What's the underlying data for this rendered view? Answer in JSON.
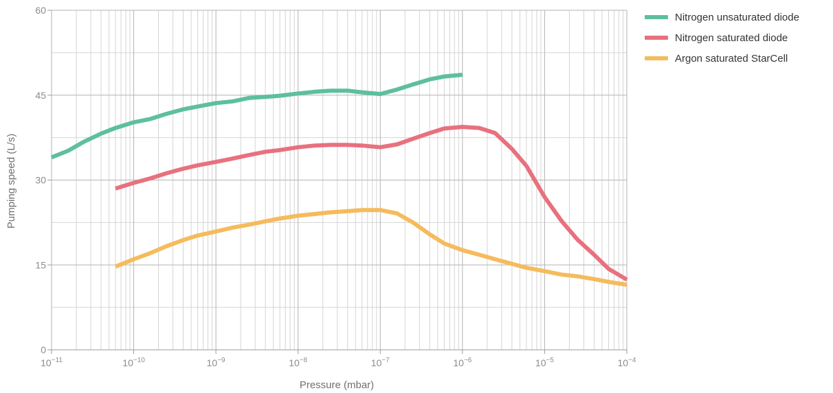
{
  "chart_data": {
    "type": "line",
    "xscale": "log",
    "xlim": [
      1e-11,
      0.0001
    ],
    "ylim": [
      0,
      60
    ],
    "xlabel": "Pressure (mbar)",
    "ylabel": "Pumping speed (L/s)",
    "grid": true,
    "legend_position": "top-right, outside plot",
    "yticks": [
      {
        "value": 0,
        "label": "0"
      },
      {
        "value": 15,
        "label": "15"
      },
      {
        "value": 30,
        "label": "30"
      },
      {
        "value": 45,
        "label": "45"
      },
      {
        "value": 60,
        "label": "60"
      }
    ],
    "xticks": [
      {
        "value": 1e-11,
        "base": "10",
        "exp": "−11"
      },
      {
        "value": 1e-10,
        "base": "10",
        "exp": "−10"
      },
      {
        "value": 1e-09,
        "base": "10",
        "exp": "−9"
      },
      {
        "value": 1e-08,
        "base": "10",
        "exp": "−8"
      },
      {
        "value": 1e-07,
        "base": "10",
        "exp": "−7"
      },
      {
        "value": 1e-06,
        "base": "10",
        "exp": "−6"
      },
      {
        "value": 1e-05,
        "base": "10",
        "exp": "−5"
      },
      {
        "value": 0.0001,
        "base": "10",
        "exp": "−4"
      }
    ],
    "series": [
      {
        "name": "Nitrogen unsaturated diode",
        "color": "#5dbf9f",
        "x": [
          1e-11,
          1.6e-11,
          2.5e-11,
          4e-11,
          6e-11,
          1e-10,
          1.6e-10,
          2.5e-10,
          4e-10,
          6e-10,
          1e-09,
          1.6e-09,
          2.5e-09,
          4e-09,
          6e-09,
          1e-08,
          1.6e-08,
          2.5e-08,
          4e-08,
          6e-08,
          1e-07,
          1.6e-07,
          2.5e-07,
          4e-07,
          6e-07,
          1e-06
        ],
        "y": [
          34,
          35.2,
          36.8,
          38.2,
          39.2,
          40.2,
          40.8,
          41.7,
          42.5,
          43.0,
          43.6,
          43.9,
          44.5,
          44.7,
          44.9,
          45.3,
          45.6,
          45.8,
          45.8,
          45.5,
          45.2,
          46.0,
          46.9,
          47.8,
          48.3,
          48.6
        ]
      },
      {
        "name": "Nitrogen saturated diode",
        "color": "#e8717f",
        "x": [
          6e-11,
          1e-10,
          1.6e-10,
          2.5e-10,
          4e-10,
          6e-10,
          1e-09,
          1.6e-09,
          2.5e-09,
          4e-09,
          6e-09,
          1e-08,
          1.6e-08,
          2.5e-08,
          4e-08,
          6e-08,
          1e-07,
          1.6e-07,
          2.5e-07,
          4e-07,
          6e-07,
          1e-06,
          1.6e-06,
          2.5e-06,
          4e-06,
          6e-06,
          1e-05,
          1.6e-05,
          2.5e-05,
          4e-05,
          6e-05,
          0.0001
        ],
        "y": [
          28.5,
          29.5,
          30.3,
          31.2,
          32.0,
          32.6,
          33.2,
          33.8,
          34.4,
          35.0,
          35.3,
          35.8,
          36.1,
          36.2,
          36.2,
          36.1,
          35.8,
          36.3,
          37.3,
          38.3,
          39.1,
          39.4,
          39.2,
          38.3,
          35.5,
          32.5,
          27.0,
          22.8,
          19.5,
          16.8,
          14.3,
          12.4
        ]
      },
      {
        "name": "Argon saturated StarCell",
        "color": "#f5bb5c",
        "x": [
          6e-11,
          1e-10,
          1.6e-10,
          2.5e-10,
          4e-10,
          6e-10,
          1e-09,
          1.6e-09,
          2.5e-09,
          4e-09,
          6e-09,
          1e-08,
          1.6e-08,
          2.5e-08,
          4e-08,
          6e-08,
          1e-07,
          1.6e-07,
          2.5e-07,
          4e-07,
          6e-07,
          1e-06,
          1.6e-06,
          2.5e-06,
          4e-06,
          6e-06,
          1e-05,
          1.6e-05,
          2.5e-05,
          4e-05,
          6e-05,
          0.0001
        ],
        "y": [
          14.7,
          16.0,
          17.1,
          18.3,
          19.4,
          20.2,
          20.9,
          21.6,
          22.1,
          22.7,
          23.2,
          23.7,
          24.0,
          24.3,
          24.5,
          24.7,
          24.7,
          24.1,
          22.5,
          20.4,
          18.8,
          17.6,
          16.8,
          16.0,
          15.2,
          14.5,
          13.9,
          13.3,
          13.0,
          12.5,
          12.0,
          11.5
        ]
      }
    ]
  }
}
